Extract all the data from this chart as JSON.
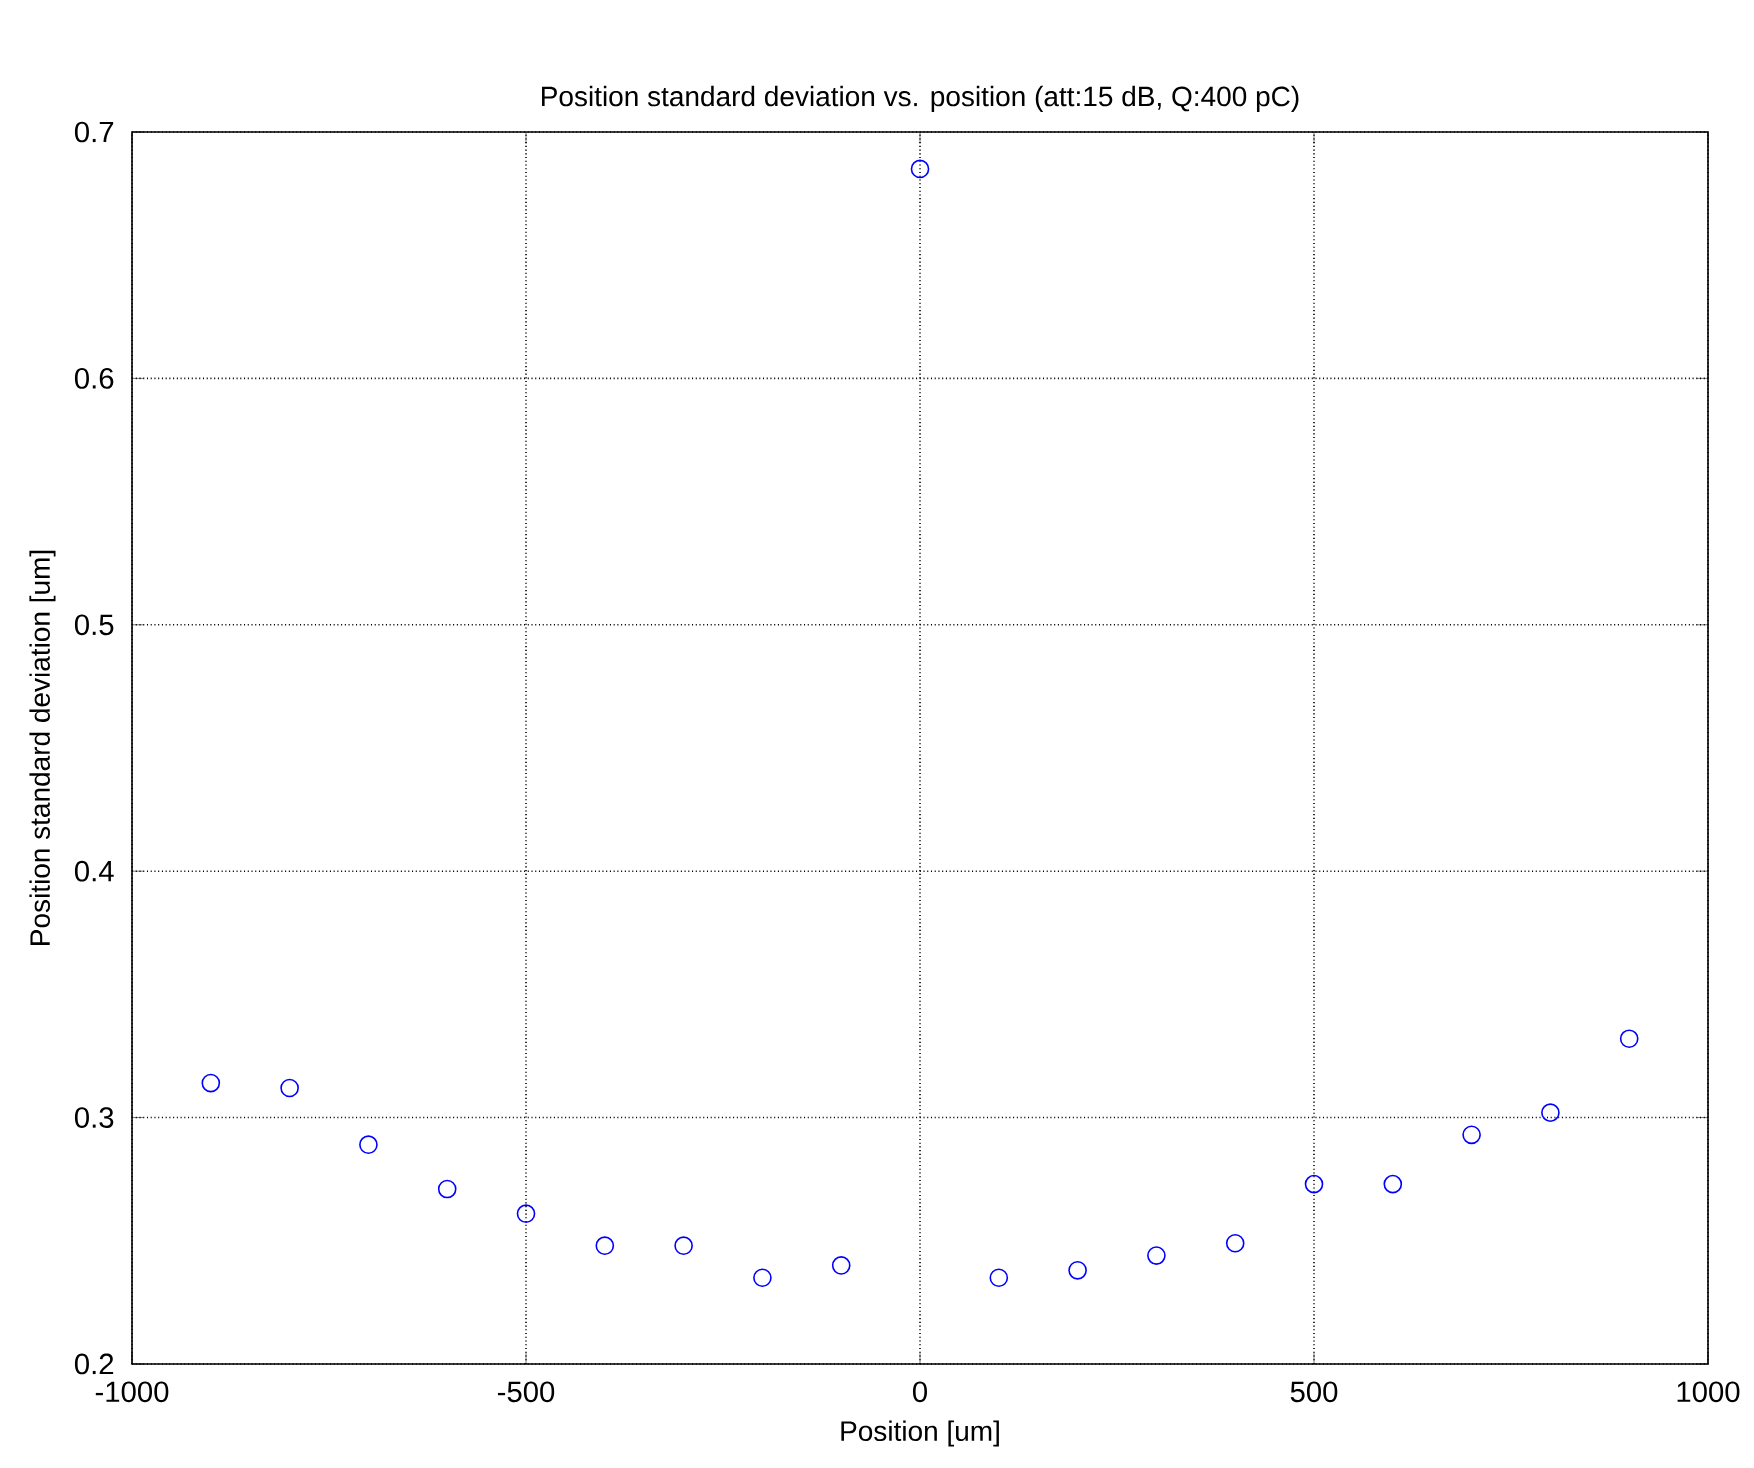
{
  "chart_data": {
    "type": "scatter",
    "title": "Position standard deviation vs. position (att:15 dB, Q:400 pC)",
    "xlabel": "Position [um]",
    "ylabel": "Position standard deviation [um]",
    "x": [
      -900,
      -800,
      -700,
      -600,
      -500,
      -400,
      -300,
      -200,
      -100,
      0,
      100,
      200,
      300,
      400,
      500,
      600,
      700,
      800,
      900
    ],
    "series": [
      {
        "color": "#0000ff",
        "values": [
          0.314,
          0.312,
          0.289,
          0.271,
          0.261,
          0.248,
          0.248,
          0.235,
          0.24,
          0.685,
          0.235,
          0.238,
          0.244,
          0.249,
          0.273,
          0.273,
          0.293,
          0.302,
          0.332
        ]
      }
    ],
    "xlim": [
      -1000,
      1000
    ],
    "ylim": [
      0.2,
      0.7
    ],
    "xticks": [
      -1000,
      -500,
      0,
      500,
      1000
    ],
    "yticks": [
      0.2,
      0.3,
      0.4,
      0.5,
      0.6,
      0.7
    ],
    "grid": true,
    "marker": "circle"
  }
}
